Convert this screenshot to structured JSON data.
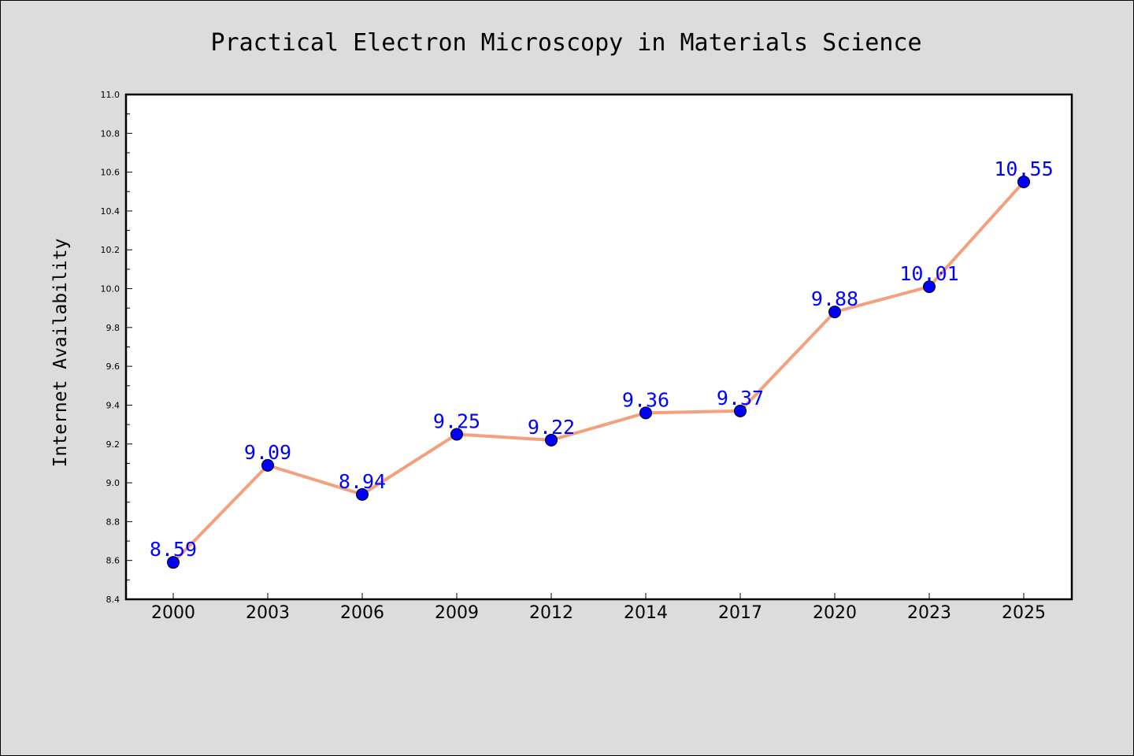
{
  "chart_data": {
    "type": "line",
    "title": "Practical Electron Microscopy in Materials Science",
    "xlabel": "",
    "ylabel": "Internet Availability",
    "categories": [
      "2000",
      "2003",
      "2006",
      "2009",
      "2012",
      "2014",
      "2017",
      "2020",
      "2023",
      "2025"
    ],
    "series": [
      {
        "values": [
          8.59,
          9.09,
          8.94,
          9.25,
          9.22,
          9.36,
          9.37,
          9.88,
          10.01,
          10.55
        ],
        "line_color": "#f4a07e",
        "marker_color": "#0000ff"
      }
    ],
    "value_labels": [
      "8.59",
      "9.09",
      "8.94",
      "9.25",
      "9.22",
      "9.36",
      "9.37",
      "9.88",
      "10.01",
      "10.55"
    ],
    "ylim": [
      8.4,
      11.0
    ],
    "yticks": [
      "8.4",
      "8.6",
      "8.8",
      "9.0",
      "9.2",
      "9.4",
      "9.6",
      "9.8",
      "10.0",
      "10.2",
      "10.4",
      "10.6",
      "10.8",
      "11.0"
    ],
    "grid": false,
    "legend": "none",
    "colors": {
      "background": "#dcdcdc",
      "plot_background": "#ffffff",
      "data_label": "#0000ff"
    }
  }
}
